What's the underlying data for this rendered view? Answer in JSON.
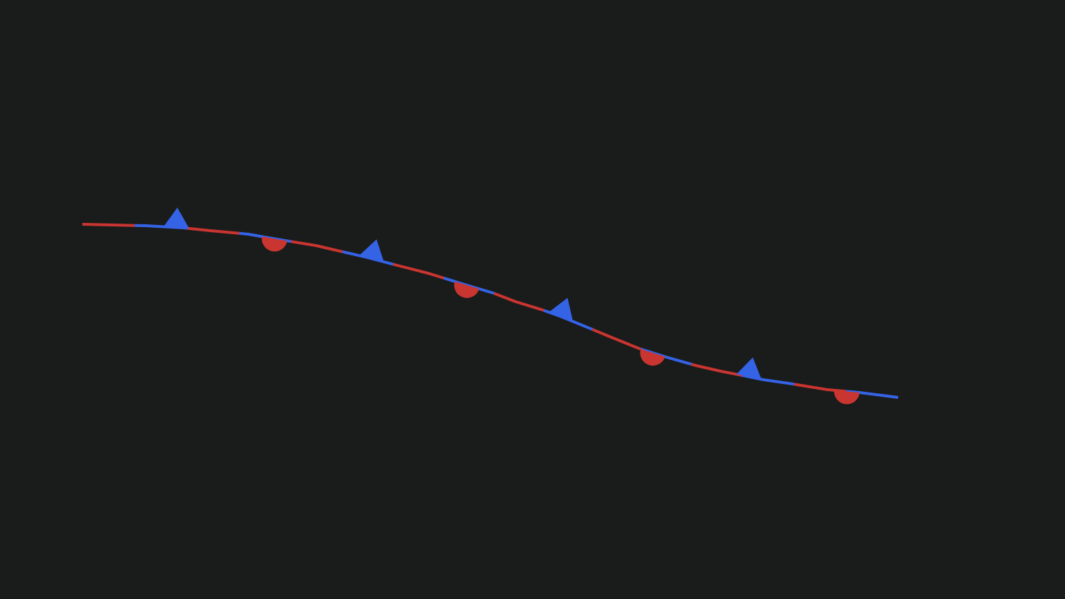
{
  "map": {
    "background_color": "#1a1b1b",
    "feature": {
      "kind": "stationary-front",
      "warm_color": "#c93530",
      "cold_color": "#3563e6",
      "warm_symbol": "semicircle",
      "cold_symbol": "triangle",
      "warm_symbol_count": 4,
      "cold_symbol_count": 4
    }
  }
}
